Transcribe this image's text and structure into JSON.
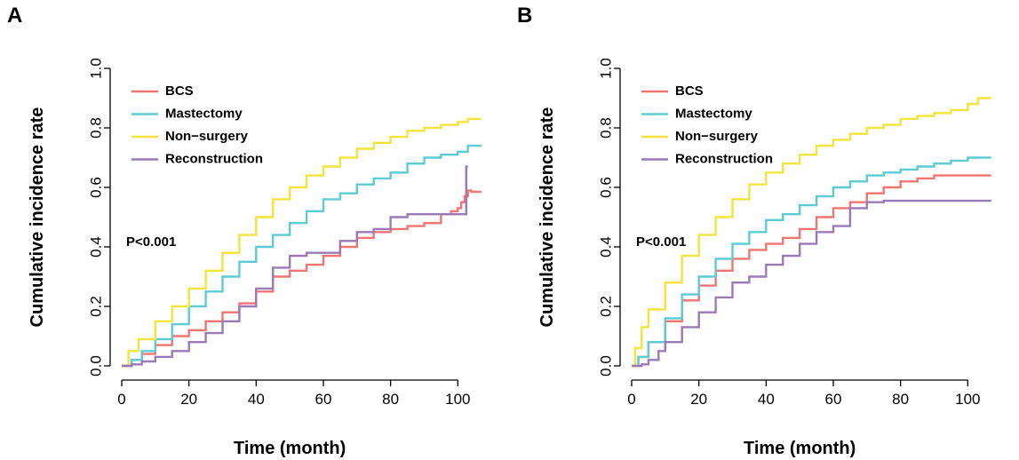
{
  "chart_data": [
    {
      "type": "line",
      "step": true,
      "panel_label": "A",
      "xlabel": "Time (month)",
      "ylabel": "Cumulative incidence rate",
      "xlim": [
        0,
        106
      ],
      "ylim": [
        0,
        1
      ],
      "xticks": [
        "0",
        "20",
        "40",
        "60",
        "80",
        "100"
      ],
      "yticks": [
        "0.0",
        "0.2",
        "0.4",
        "0.6",
        "0.8",
        "1.0"
      ],
      "annotation": "P<0.001",
      "legend_position": "top-left",
      "series": [
        {
          "name": "BCS",
          "color": "#f07470",
          "x": [
            0,
            3,
            6,
            10,
            15,
            20,
            25,
            30,
            35,
            40,
            45,
            50,
            55,
            60,
            65,
            70,
            75,
            80,
            85,
            90,
            95,
            98,
            100,
            101,
            102,
            103,
            104,
            107
          ],
          "y": [
            0,
            0.02,
            0.04,
            0.07,
            0.1,
            0.12,
            0.15,
            0.18,
            0.21,
            0.25,
            0.3,
            0.32,
            0.34,
            0.37,
            0.4,
            0.43,
            0.45,
            0.46,
            0.47,
            0.48,
            0.51,
            0.52,
            0.53,
            0.55,
            0.57,
            0.59,
            0.585,
            0.585
          ]
        },
        {
          "name": "Mastectomy",
          "color": "#5bcbd4",
          "x": [
            0,
            3,
            6,
            10,
            15,
            20,
            25,
            30,
            35,
            40,
            45,
            50,
            55,
            60,
            65,
            70,
            75,
            80,
            85,
            90,
            95,
            100,
            103,
            107
          ],
          "y": [
            0,
            0.02,
            0.05,
            0.09,
            0.14,
            0.2,
            0.25,
            0.3,
            0.35,
            0.4,
            0.44,
            0.48,
            0.52,
            0.56,
            0.58,
            0.61,
            0.63,
            0.65,
            0.68,
            0.7,
            0.71,
            0.72,
            0.74,
            0.74
          ]
        },
        {
          "name": "Non−surgery",
          "color": "#f2e43a",
          "x": [
            0,
            2,
            5,
            10,
            15,
            20,
            25,
            30,
            35,
            40,
            45,
            50,
            55,
            60,
            65,
            70,
            75,
            80,
            85,
            90,
            95,
            100,
            103,
            107
          ],
          "y": [
            0,
            0.05,
            0.09,
            0.15,
            0.2,
            0.26,
            0.32,
            0.38,
            0.44,
            0.5,
            0.56,
            0.6,
            0.64,
            0.67,
            0.7,
            0.73,
            0.75,
            0.77,
            0.79,
            0.8,
            0.81,
            0.82,
            0.83,
            0.83
          ]
        },
        {
          "name": "Reconstruction",
          "color": "#9b78b7",
          "x": [
            0,
            3,
            6,
            10,
            15,
            20,
            25,
            30,
            35,
            40,
            45,
            50,
            55,
            60,
            65,
            70,
            75,
            80,
            85,
            90,
            95,
            100,
            102,
            102.5,
            103
          ],
          "y": [
            0,
            0.005,
            0.015,
            0.03,
            0.05,
            0.08,
            0.11,
            0.15,
            0.2,
            0.26,
            0.33,
            0.37,
            0.38,
            0.38,
            0.42,
            0.45,
            0.46,
            0.5,
            0.51,
            0.51,
            0.51,
            0.51,
            0.51,
            0.67,
            0.67
          ]
        }
      ]
    },
    {
      "type": "line",
      "step": true,
      "panel_label": "B",
      "xlabel": "Time (month)",
      "ylabel": "Cumulative incidence rate",
      "xlim": [
        0,
        106
      ],
      "ylim": [
        0,
        1
      ],
      "xticks": [
        "0",
        "20",
        "40",
        "60",
        "80",
        "100"
      ],
      "yticks": [
        "0.0",
        "0.2",
        "0.4",
        "0.6",
        "0.8",
        "1.0"
      ],
      "annotation": "P<0.001",
      "legend_position": "top-left",
      "series": [
        {
          "name": "BCS",
          "color": "#f07470",
          "x": [
            0,
            2,
            5,
            10,
            15,
            20,
            25,
            30,
            35,
            40,
            45,
            50,
            55,
            60,
            65,
            70,
            75,
            80,
            85,
            90,
            100,
            107
          ],
          "y": [
            0,
            0.03,
            0.08,
            0.15,
            0.22,
            0.27,
            0.32,
            0.36,
            0.39,
            0.41,
            0.43,
            0.46,
            0.5,
            0.53,
            0.55,
            0.58,
            0.6,
            0.62,
            0.63,
            0.64,
            0.64,
            0.64
          ]
        },
        {
          "name": "Mastectomy",
          "color": "#5bcbd4",
          "x": [
            0,
            2,
            5,
            10,
            15,
            20,
            25,
            30,
            35,
            40,
            45,
            50,
            55,
            60,
            65,
            70,
            75,
            80,
            85,
            90,
            95,
            100,
            103,
            107
          ],
          "y": [
            0,
            0.03,
            0.08,
            0.16,
            0.24,
            0.3,
            0.36,
            0.41,
            0.45,
            0.49,
            0.51,
            0.54,
            0.57,
            0.6,
            0.62,
            0.64,
            0.65,
            0.66,
            0.67,
            0.68,
            0.69,
            0.7,
            0.7,
            0.7
          ]
        },
        {
          "name": "Non−surgery",
          "color": "#f2e43a",
          "x": [
            0,
            1,
            3,
            5,
            10,
            15,
            20,
            25,
            30,
            35,
            40,
            45,
            50,
            55,
            60,
            65,
            70,
            75,
            80,
            85,
            90,
            95,
            100,
            103,
            107
          ],
          "y": [
            0,
            0.06,
            0.13,
            0.19,
            0.28,
            0.37,
            0.44,
            0.5,
            0.56,
            0.61,
            0.65,
            0.68,
            0.71,
            0.74,
            0.76,
            0.78,
            0.8,
            0.81,
            0.83,
            0.84,
            0.85,
            0.86,
            0.88,
            0.9,
            0.9
          ]
        },
        {
          "name": "Reconstruction",
          "color": "#9b78b7",
          "x": [
            0,
            3,
            5,
            8,
            10,
            15,
            20,
            25,
            30,
            35,
            40,
            45,
            50,
            55,
            60,
            65,
            70,
            75,
            80,
            85,
            100,
            107
          ],
          "y": [
            0,
            0.005,
            0.02,
            0.05,
            0.08,
            0.13,
            0.18,
            0.23,
            0.28,
            0.3,
            0.34,
            0.37,
            0.41,
            0.45,
            0.47,
            0.53,
            0.55,
            0.555,
            0.555,
            0.555,
            0.555,
            0.555
          ]
        }
      ]
    }
  ]
}
